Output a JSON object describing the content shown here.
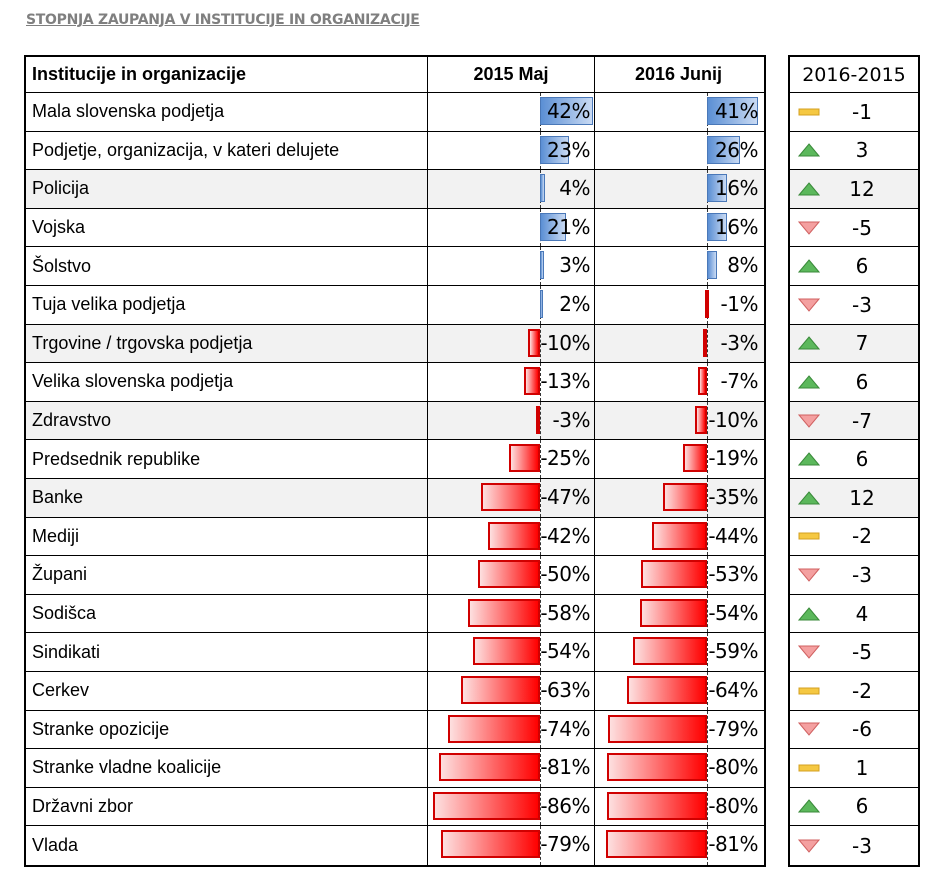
{
  "title": "Stopnja zaupanja v institucije in organizacije",
  "chart_data": {
    "type": "table",
    "columns": [
      "Institucije in organizacije",
      "2015 Maj",
      "2016 Junij",
      "2016-2015"
    ],
    "rows": [
      {
        "name": "Mala slovenska podjetja",
        "v2015": 42,
        "v2016": 41,
        "diff": -1,
        "trend": "flat"
      },
      {
        "name": "Podjetje, organizacija, v kateri delujete",
        "v2015": 23,
        "v2016": 26,
        "diff": 3,
        "trend": "up"
      },
      {
        "name": "Policija",
        "v2015": 4,
        "v2016": 16,
        "diff": 12,
        "trend": "up"
      },
      {
        "name": "Vojska",
        "v2015": 21,
        "v2016": 16,
        "diff": -5,
        "trend": "down"
      },
      {
        "name": "Šolstvo",
        "v2015": 3,
        "v2016": 8,
        "diff": 6,
        "trend": "up"
      },
      {
        "name": "Tuja velika podjetja",
        "v2015": 2,
        "v2016": -1,
        "diff": -3,
        "trend": "down"
      },
      {
        "name": "Trgovine / trgovska podjetja",
        "v2015": -10,
        "v2016": -3,
        "diff": 7,
        "trend": "up"
      },
      {
        "name": "Velika slovenska podjetja",
        "v2015": -13,
        "v2016": -7,
        "diff": 6,
        "trend": "up"
      },
      {
        "name": "Zdravstvo",
        "v2015": -3,
        "v2016": -10,
        "diff": -7,
        "trend": "down"
      },
      {
        "name": "Predsednik republike",
        "v2015": -25,
        "v2016": -19,
        "diff": 6,
        "trend": "up"
      },
      {
        "name": "Banke",
        "v2015": -47,
        "v2016": -35,
        "diff": 12,
        "trend": "up"
      },
      {
        "name": "Mediji",
        "v2015": -42,
        "v2016": -44,
        "diff": -2,
        "trend": "flat"
      },
      {
        "name": "Župani",
        "v2015": -50,
        "v2016": -53,
        "diff": -3,
        "trend": "down"
      },
      {
        "name": "Sodišca",
        "v2015": -58,
        "v2016": -54,
        "diff": 4,
        "trend": "up"
      },
      {
        "name": "Sindikati",
        "v2015": -54,
        "v2016": -59,
        "diff": -5,
        "trend": "down"
      },
      {
        "name": "Cerkev",
        "v2015": -63,
        "v2016": -64,
        "diff": -2,
        "trend": "flat"
      },
      {
        "name": "Stranke opozicije",
        "v2015": -74,
        "v2016": -79,
        "diff": -6,
        "trend": "down"
      },
      {
        "name": "Stranke vladne koalicije",
        "v2015": -81,
        "v2016": -80,
        "diff": 1,
        "trend": "flat"
      },
      {
        "name": "Državni zbor",
        "v2015": -86,
        "v2016": -80,
        "diff": 6,
        "trend": "up"
      },
      {
        "name": "Vlada",
        "v2015": -79,
        "v2016": -81,
        "diff": -3,
        "trend": "down"
      }
    ],
    "shaded_rows": [
      2,
      6,
      8,
      10
    ],
    "colors": {
      "positive": "#5b8fd4",
      "negative": "#ff0000",
      "up": "#4caf50",
      "down": "#f08080",
      "flat": "#f0c040"
    }
  }
}
